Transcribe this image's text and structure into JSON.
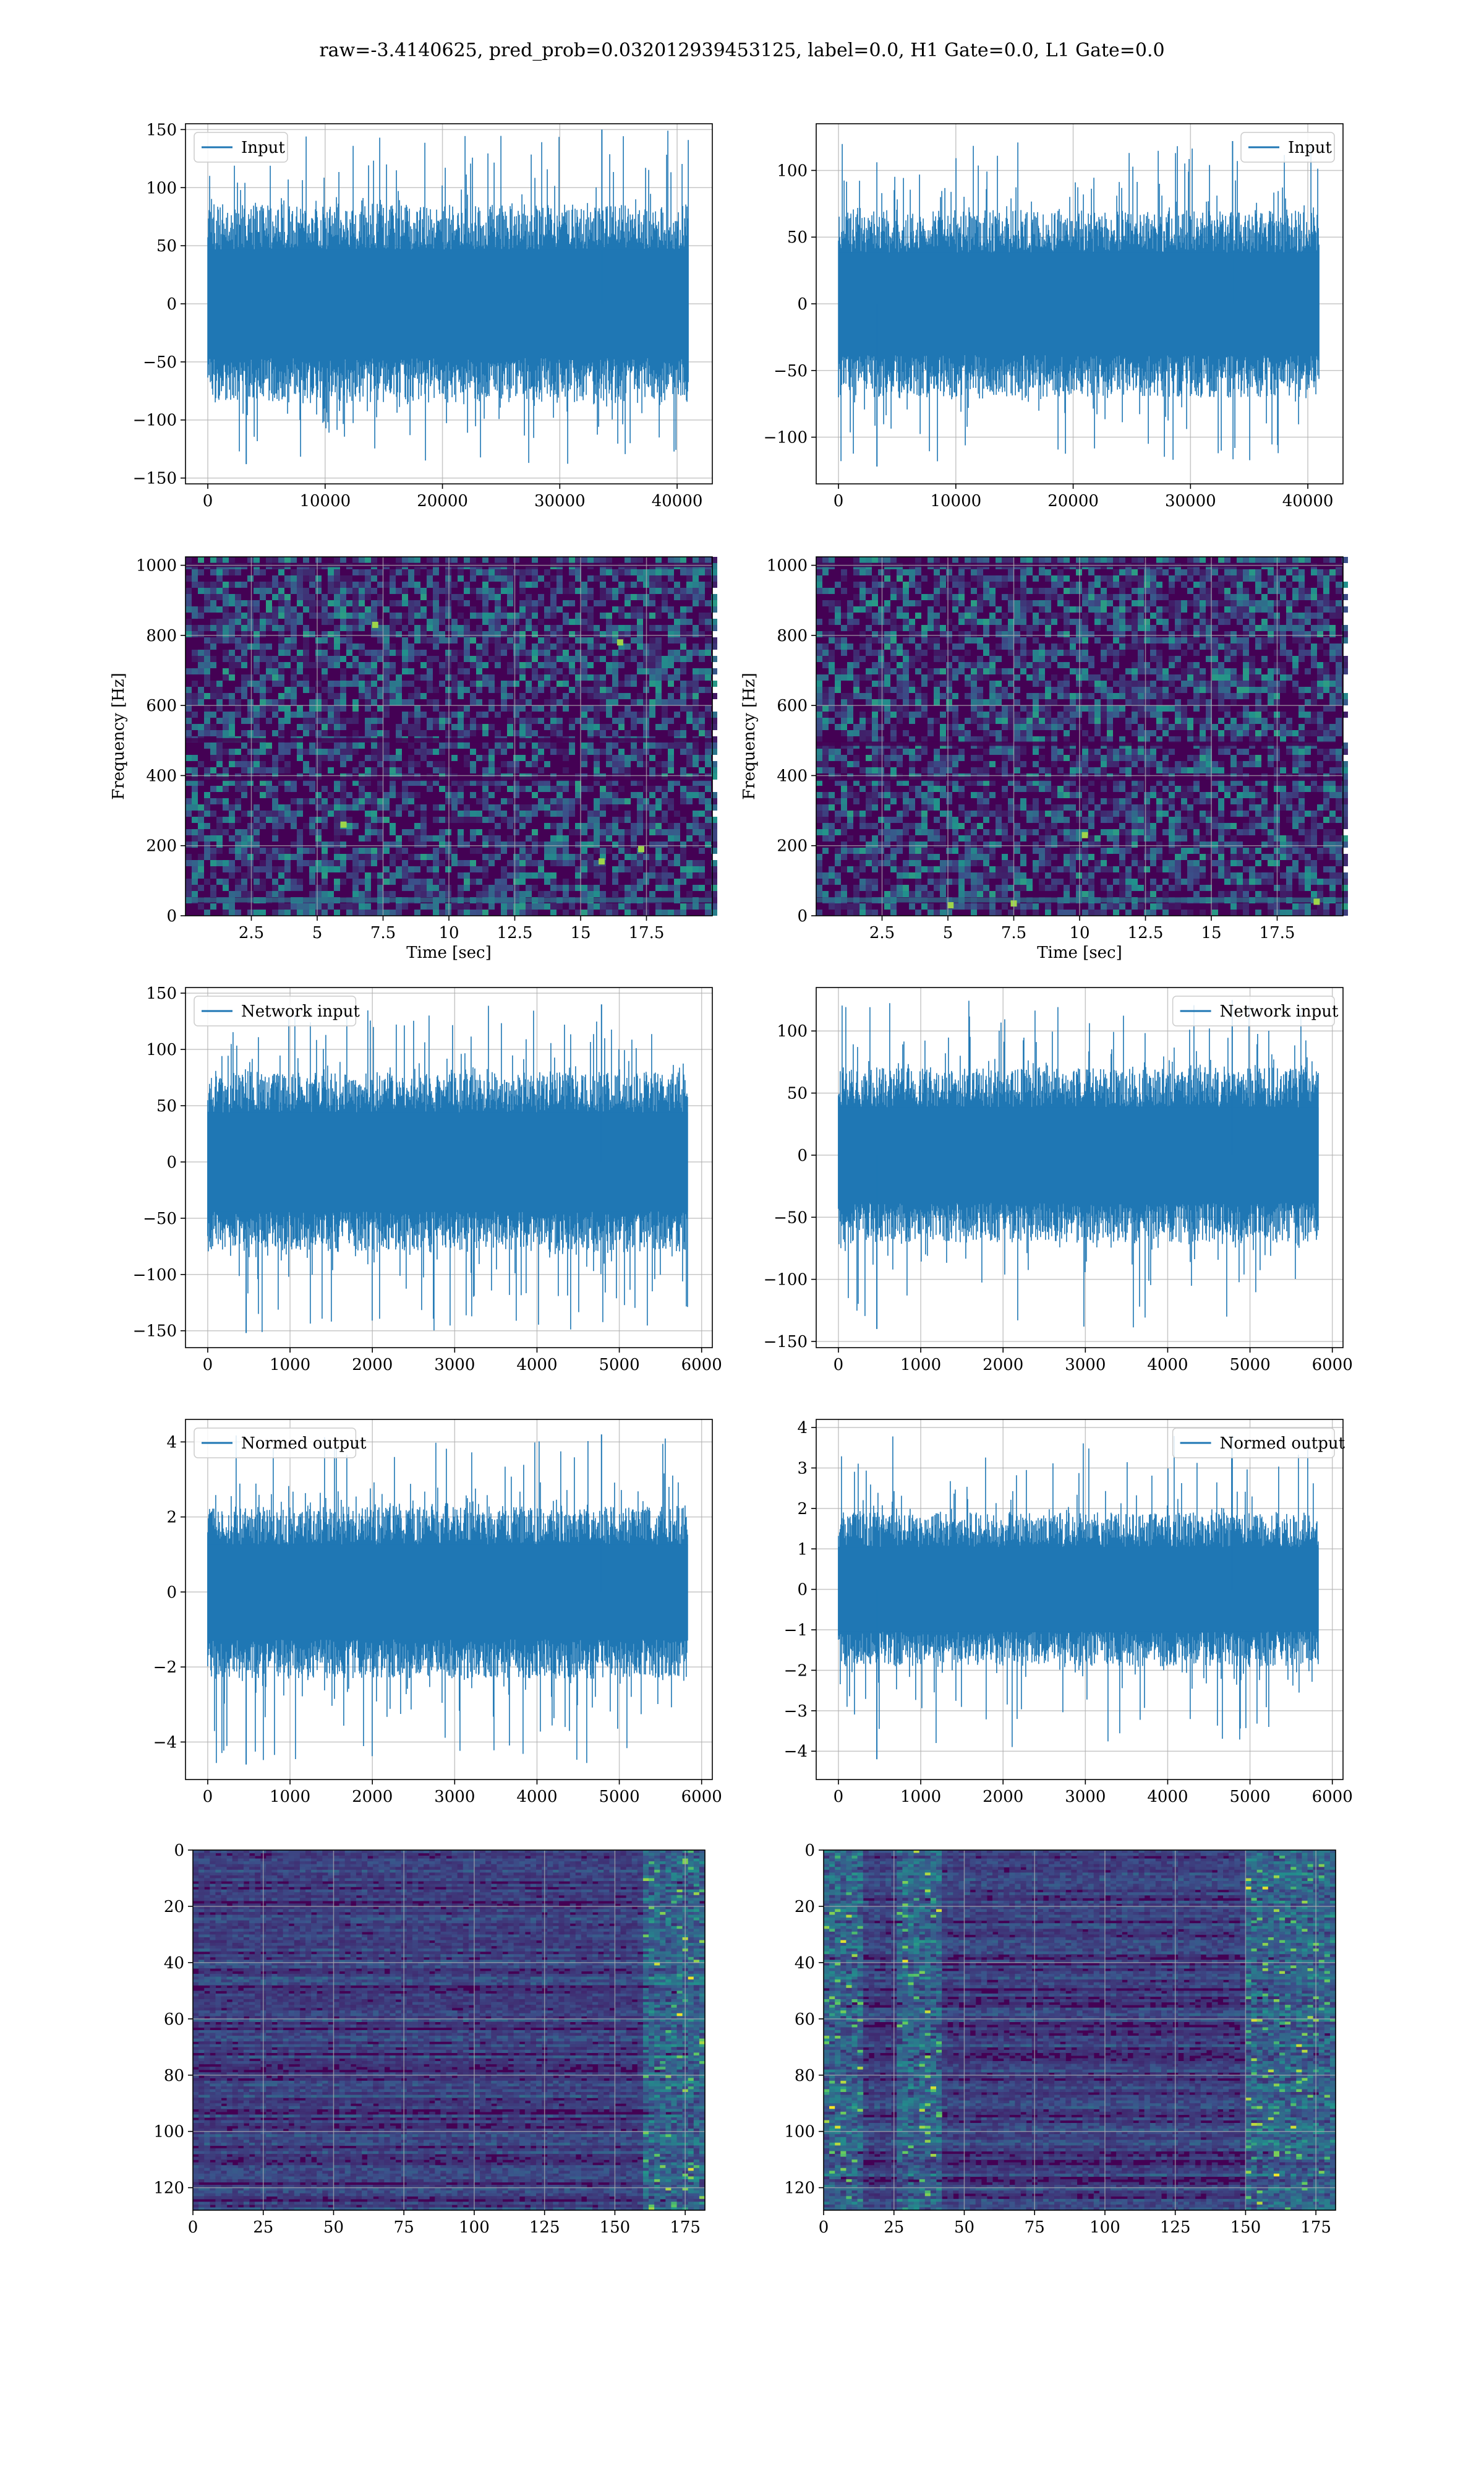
{
  "figure": {
    "title": "raw=-3.4140625, pred_prob=0.032012939453125, label=0.0, H1 Gate=0.0, L1 Gate=0.0"
  },
  "colors": {
    "line": "#1f77b4",
    "grid": "#b0b0b0",
    "spec_low": "#440154",
    "spec_mid": "#2a788e",
    "spec_high": "#fde725"
  },
  "chart_data": [
    {
      "id": "r1c1",
      "type": "line",
      "legend": "Input",
      "legend_loc": "upper left",
      "xlim": [
        -1900,
        43000
      ],
      "ylim": [
        -155,
        155
      ],
      "xticks": [
        0,
        10000,
        20000,
        30000,
        40000
      ],
      "yticks": [
        -150,
        -100,
        -50,
        0,
        50,
        100,
        150
      ],
      "series": [
        {
          "x_range": [
            0,
            40960
          ],
          "envelope": [
            -85,
            85
          ],
          "spike_range": [
            -138,
            150
          ]
        }
      ],
      "grid": true
    },
    {
      "id": "r1c2",
      "type": "line",
      "legend": "Input",
      "legend_loc": "upper right",
      "xlim": [
        -1900,
        43000
      ],
      "ylim": [
        -135,
        135
      ],
      "xticks": [
        0,
        10000,
        20000,
        30000,
        40000
      ],
      "yticks": [
        -100,
        -50,
        0,
        50,
        100
      ],
      "series": [
        {
          "x_range": [
            0,
            40960
          ],
          "envelope": [
            -70,
            70
          ],
          "spike_range": [
            -122,
            122
          ]
        }
      ],
      "grid": true
    },
    {
      "id": "r2c1",
      "type": "heatmap",
      "subtype": "spectrogram",
      "xlim": [
        0,
        20
      ],
      "ylim": [
        0,
        1024
      ],
      "xticks": [
        2.5,
        5.0,
        7.5,
        10.0,
        12.5,
        15.0,
        17.5
      ],
      "yticks": [
        0,
        200,
        400,
        600,
        800,
        1000
      ],
      "xlabel": "Time [sec]",
      "ylabel": "Frequency [Hz]",
      "bright_spots": [
        [
          6.0,
          260
        ],
        [
          17.3,
          190
        ],
        [
          15.8,
          155
        ],
        [
          7.2,
          830
        ],
        [
          16.5,
          780
        ]
      ],
      "dark_bands_hz": [
        390,
        500,
        1000
      ],
      "grid": true
    },
    {
      "id": "r2c2",
      "type": "heatmap",
      "subtype": "spectrogram",
      "xlim": [
        0,
        20
      ],
      "ylim": [
        0,
        1024
      ],
      "xticks": [
        2.5,
        5.0,
        7.5,
        10.0,
        12.5,
        15.0,
        17.5
      ],
      "yticks": [
        0,
        200,
        400,
        600,
        800,
        1000
      ],
      "xlabel": "Time [sec]",
      "ylabel": "Frequency [Hz]",
      "bright_spots": [
        [
          5.1,
          30
        ],
        [
          7.5,
          35
        ],
        [
          10.2,
          230
        ],
        [
          19.0,
          40
        ]
      ],
      "dark_bands_hz": [
        390,
        490,
        1000
      ],
      "grid": true
    },
    {
      "id": "r3c1",
      "type": "line",
      "legend": "Network input",
      "legend_loc": "upper left",
      "xlim": [
        -270,
        6130
      ],
      "ylim": [
        -165,
        155
      ],
      "xticks": [
        0,
        1000,
        2000,
        3000,
        4000,
        5000,
        6000
      ],
      "yticks": [
        -150,
        -100,
        -50,
        0,
        50,
        100,
        150
      ],
      "series": [
        {
          "x_range": [
            0,
            5834
          ],
          "envelope": [
            -80,
            80
          ],
          "spike_range": [
            -152,
            140
          ]
        }
      ],
      "grid": true
    },
    {
      "id": "r3c2",
      "type": "line",
      "legend": "Network input",
      "legend_loc": "upper right",
      "xlim": [
        -270,
        6130
      ],
      "ylim": [
        -155,
        135
      ],
      "xticks": [
        0,
        1000,
        2000,
        3000,
        4000,
        5000,
        6000
      ],
      "yticks": [
        -150,
        -100,
        -50,
        0,
        50,
        100
      ],
      "series": [
        {
          "x_range": [
            0,
            5834
          ],
          "envelope": [
            -70,
            70
          ],
          "spike_range": [
            -140,
            125
          ]
        }
      ],
      "grid": true
    },
    {
      "id": "r4c1",
      "type": "line",
      "legend": "Normed output",
      "legend_loc": "upper left",
      "xlim": [
        -270,
        6130
      ],
      "ylim": [
        -5.0,
        4.6
      ],
      "xticks": [
        0,
        1000,
        2000,
        3000,
        4000,
        5000,
        6000
      ],
      "yticks": [
        -4,
        -2,
        0,
        2,
        4
      ],
      "series": [
        {
          "x_range": [
            0,
            5834
          ],
          "envelope": [
            -2.3,
            2.3
          ],
          "spike_range": [
            -4.6,
            4.2
          ]
        }
      ],
      "grid": true
    },
    {
      "id": "r4c2",
      "type": "line",
      "legend": "Normed output",
      "legend_loc": "upper right",
      "xlim": [
        -270,
        6130
      ],
      "ylim": [
        -4.7,
        4.2
      ],
      "xticks": [
        0,
        1000,
        2000,
        3000,
        4000,
        5000,
        6000
      ],
      "yticks": [
        -4,
        -3,
        -2,
        -1,
        0,
        1,
        2,
        3,
        4
      ],
      "series": [
        {
          "x_range": [
            0,
            5834
          ],
          "envelope": [
            -1.9,
            1.9
          ],
          "spike_range": [
            -4.2,
            3.8
          ]
        }
      ],
      "grid": true
    },
    {
      "id": "r5c1",
      "type": "heatmap",
      "xlim": [
        0,
        182
      ],
      "ylim": [
        128,
        0
      ],
      "y_inverted": true,
      "xticks": [
        0,
        25,
        50,
        75,
        100,
        125,
        150,
        175
      ],
      "yticks": [
        0,
        20,
        40,
        60,
        80,
        100,
        120
      ],
      "rows": 128,
      "cols": 182,
      "bright_columns": [
        160,
        182
      ],
      "grid": true
    },
    {
      "id": "r5c2",
      "type": "heatmap",
      "xlim": [
        0,
        182
      ],
      "ylim": [
        128,
        0
      ],
      "y_inverted": true,
      "xticks": [
        0,
        25,
        50,
        75,
        100,
        125,
        150,
        175
      ],
      "yticks": [
        0,
        20,
        40,
        60,
        80,
        100,
        120
      ],
      "rows": 128,
      "cols": 182,
      "bright_columns": [
        [
          0,
          12
        ],
        [
          25,
          40
        ],
        [
          150,
          182
        ]
      ],
      "grid": true
    }
  ]
}
